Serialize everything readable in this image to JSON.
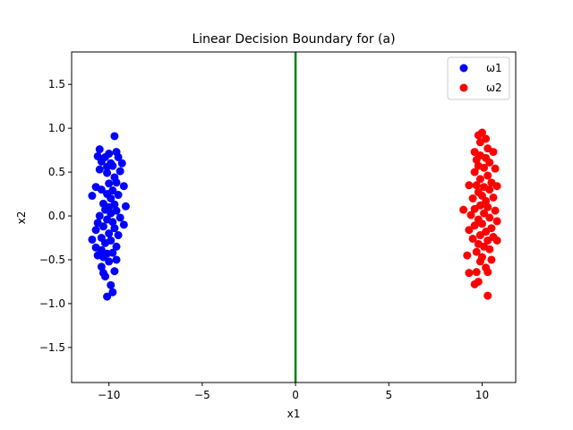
{
  "chart_data": {
    "type": "scatter",
    "title": "Linear Decision Boundary for (a)",
    "xlabel": "x1",
    "ylabel": "x2",
    "xlim": [
      -12,
      11.8
    ],
    "ylim": [
      -1.9,
      1.87
    ],
    "xticks": [
      -10,
      -5,
      0,
      5,
      10
    ],
    "yticks": [
      -1.5,
      -1.0,
      -0.5,
      0.0,
      0.5,
      1.0,
      1.5
    ],
    "xtick_labels": [
      "−10",
      "−5",
      "0",
      "5",
      "10"
    ],
    "ytick_labels": [
      "−1.5",
      "−1.0",
      "−0.5",
      "0.0",
      "0.5",
      "1.0",
      "1.5"
    ],
    "grid": false,
    "legend_position": "top-right",
    "decision_boundary": {
      "x": 0,
      "color": "#008000"
    },
    "series": [
      {
        "name": "ω1",
        "color": "#0000ff",
        "points": [
          [
            -9.7,
            0.91
          ],
          [
            -10.5,
            0.76
          ],
          [
            -10.0,
            0.71
          ],
          [
            -9.6,
            0.73
          ],
          [
            -10.6,
            0.68
          ],
          [
            -10.2,
            0.67
          ],
          [
            -9.5,
            0.67
          ],
          [
            -10.4,
            0.62
          ],
          [
            -9.9,
            0.6
          ],
          [
            -9.3,
            0.6
          ],
          [
            -10.1,
            0.56
          ],
          [
            -9.8,
            0.57
          ],
          [
            -10.5,
            0.53
          ],
          [
            -9.4,
            0.51
          ],
          [
            -10.1,
            0.49
          ],
          [
            -9.7,
            0.44
          ],
          [
            -10.7,
            0.33
          ],
          [
            -10.0,
            0.37
          ],
          [
            -9.6,
            0.38
          ],
          [
            -9.2,
            0.34
          ],
          [
            -10.4,
            0.3
          ],
          [
            -9.8,
            0.29
          ],
          [
            -10.1,
            0.25
          ],
          [
            -9.5,
            0.24
          ],
          [
            -10.9,
            0.23
          ],
          [
            -9.9,
            0.2
          ],
          [
            -10.3,
            0.14
          ],
          [
            -9.7,
            0.13
          ],
          [
            -10.0,
            0.1
          ],
          [
            -9.1,
            0.11
          ],
          [
            -10.2,
            0.07
          ],
          [
            -9.6,
            0.06
          ],
          [
            -9.9,
            0.03
          ],
          [
            -10.5,
            0.0
          ],
          [
            -9.4,
            -0.02
          ],
          [
            -10.1,
            -0.04
          ],
          [
            -10.6,
            -0.08
          ],
          [
            -9.8,
            -0.07
          ],
          [
            -9.2,
            -0.1
          ],
          [
            -10.3,
            -0.12
          ],
          [
            -9.7,
            -0.14
          ],
          [
            -10.7,
            -0.16
          ],
          [
            -10.0,
            -0.2
          ],
          [
            -9.5,
            -0.22
          ],
          [
            -10.4,
            -0.25
          ],
          [
            -10.9,
            -0.27
          ],
          [
            -9.9,
            -0.28
          ],
          [
            -10.2,
            -0.31
          ],
          [
            -9.6,
            -0.35
          ],
          [
            -10.7,
            -0.36
          ],
          [
            -10.4,
            -0.39
          ],
          [
            -10.1,
            -0.43
          ],
          [
            -9.8,
            -0.42
          ],
          [
            -10.6,
            -0.45
          ],
          [
            -10.3,
            -0.47
          ],
          [
            -9.6,
            -0.5
          ],
          [
            -10.0,
            -0.52
          ],
          [
            -10.4,
            -0.58
          ],
          [
            -9.7,
            -0.63
          ],
          [
            -10.3,
            -0.65
          ],
          [
            -10.2,
            -0.69
          ],
          [
            -9.9,
            -0.79
          ],
          [
            -9.8,
            -0.87
          ],
          [
            -10.1,
            -0.92
          ]
        ]
      },
      {
        "name": "ω2",
        "color": "#ff0000",
        "points": [
          [
            10.0,
            0.95
          ],
          [
            9.8,
            0.92
          ],
          [
            10.2,
            0.88
          ],
          [
            9.9,
            0.84
          ],
          [
            10.3,
            0.77
          ],
          [
            9.6,
            0.73
          ],
          [
            10.6,
            0.73
          ],
          [
            9.9,
            0.69
          ],
          [
            10.2,
            0.66
          ],
          [
            9.7,
            0.64
          ],
          [
            10.4,
            0.61
          ],
          [
            9.8,
            0.57
          ],
          [
            10.1,
            0.55
          ],
          [
            10.7,
            0.54
          ],
          [
            9.6,
            0.5
          ],
          [
            10.3,
            0.46
          ],
          [
            9.9,
            0.42
          ],
          [
            10.5,
            0.38
          ],
          [
            9.3,
            0.35
          ],
          [
            9.7,
            0.35
          ],
          [
            10.1,
            0.33
          ],
          [
            10.8,
            0.34
          ],
          [
            10.4,
            0.3
          ],
          [
            9.8,
            0.27
          ],
          [
            10.0,
            0.23
          ],
          [
            10.6,
            0.21
          ],
          [
            9.5,
            0.2
          ],
          [
            10.2,
            0.17
          ],
          [
            9.9,
            0.12
          ],
          [
            10.3,
            0.1
          ],
          [
            9.6,
            0.08
          ],
          [
            9.0,
            0.07
          ],
          [
            10.7,
            0.06
          ],
          [
            10.1,
            0.03
          ],
          [
            9.4,
            0.01
          ],
          [
            10.4,
            -0.02
          ],
          [
            9.8,
            -0.04
          ],
          [
            10.8,
            -0.06
          ],
          [
            10.0,
            -0.09
          ],
          [
            9.6,
            -0.11
          ],
          [
            10.5,
            -0.14
          ],
          [
            9.3,
            -0.16
          ],
          [
            10.2,
            -0.18
          ],
          [
            9.9,
            -0.22
          ],
          [
            10.6,
            -0.24
          ],
          [
            9.5,
            -0.26
          ],
          [
            10.3,
            -0.28
          ],
          [
            10.8,
            -0.28
          ],
          [
            9.8,
            -0.32
          ],
          [
            10.1,
            -0.35
          ],
          [
            10.4,
            -0.38
          ],
          [
            9.7,
            -0.41
          ],
          [
            9.2,
            -0.45
          ],
          [
            10.0,
            -0.47
          ],
          [
            10.5,
            -0.5
          ],
          [
            9.9,
            -0.52
          ],
          [
            10.2,
            -0.59
          ],
          [
            9.3,
            -0.65
          ],
          [
            9.7,
            -0.64
          ],
          [
            10.3,
            -0.64
          ],
          [
            9.8,
            -0.75
          ],
          [
            9.6,
            -0.78
          ],
          [
            10.3,
            -0.91
          ]
        ]
      }
    ]
  }
}
